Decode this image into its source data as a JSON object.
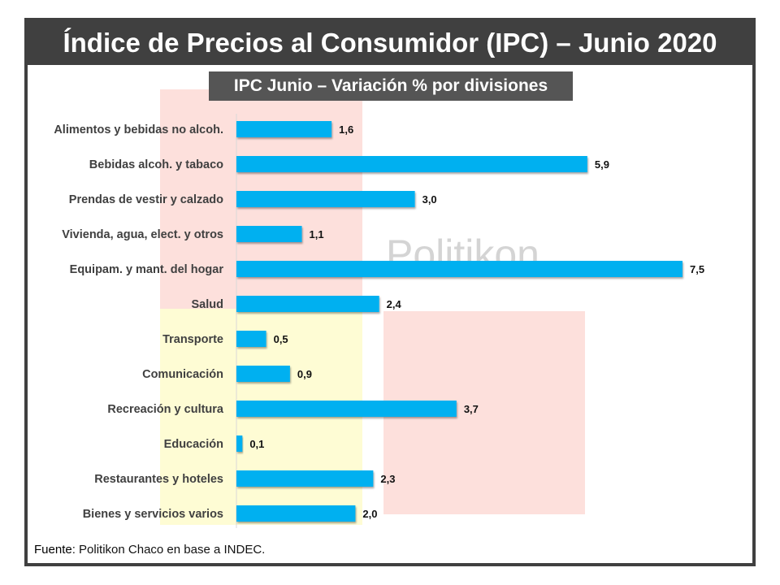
{
  "header": {
    "title": "Índice de Precios al Consumidor (IPC) – Junio 2020"
  },
  "watermark": {
    "text": "Politikon",
    "colors": {
      "pink": "#fde0dc",
      "yellow": "#fefcd4",
      "text": "#d4d4d4"
    }
  },
  "footer": {
    "source_label": "Fuente",
    "source_text": ": Politikon Chaco en base a INDEC."
  },
  "chart_data": {
    "type": "bar",
    "orientation": "horizontal",
    "title": "IPC Junio – Variación % por divisiones",
    "categories": [
      "Alimentos y bebidas no alcoh.",
      "Bebidas alcoh. y tabaco",
      "Prendas de vestir y calzado",
      "Vivienda, agua, elect. y otros",
      "Equipam. y mant. del hogar",
      "Salud",
      "Transporte",
      "Comunicación",
      "Recreación y cultura",
      "Educación",
      "Restaurantes y hoteles",
      "Bienes y servicios varios"
    ],
    "values": [
      1.6,
      5.9,
      3.0,
      1.1,
      7.5,
      2.4,
      0.5,
      0.9,
      3.7,
      0.1,
      2.3,
      2.0
    ],
    "data_labels": [
      "1,6",
      "5,9",
      "3,0",
      "1,1",
      "7,5",
      "2,4",
      "0,5",
      "0,9",
      "3,7",
      "0,1",
      "2,3",
      "2,0"
    ],
    "xlim": [
      0,
      7.5
    ],
    "grid": false,
    "legend": "none",
    "bar_color": "#00b0f0"
  }
}
